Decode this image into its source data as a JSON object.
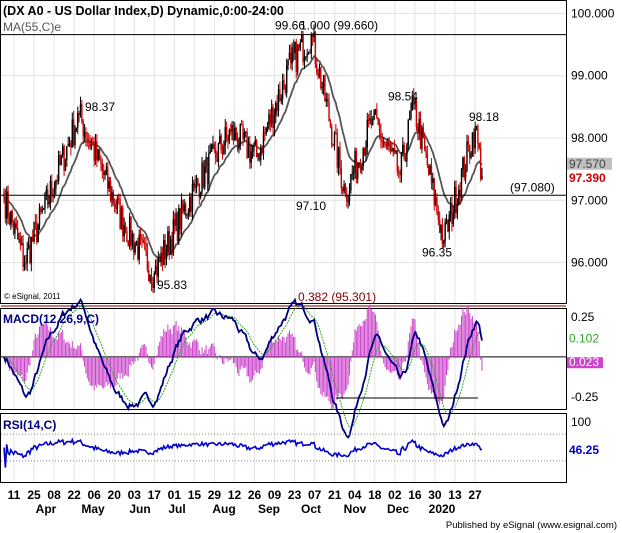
{
  "header": {
    "title": "(DX A0 - US Dollar Index,D) Dynamic,0:00-24:00",
    "ma_label": "MA(55,C)e"
  },
  "footer": {
    "copyright": "© eSignal, 2011",
    "published": "Published by eSignal (www.esignal.com)"
  },
  "colors": {
    "bull": "#000000",
    "bear": "#cc0000",
    "ma": "#555555",
    "macd": "#00007f",
    "signal": "#2ca82c",
    "histogram": "#cc44cc",
    "rsi": "#0000cc",
    "fib_line": "#800000",
    "last_price_bg": "#ffffff",
    "badge_gray": "#c0c0c0"
  },
  "chart_data": [
    {
      "type": "candlestick",
      "panel": "price",
      "ylim": [
        95.35,
        100.2
      ],
      "y_ticks": [
        96.0,
        97.0,
        98.0,
        99.0,
        100.0
      ],
      "y_tick_labels": [
        "96.000",
        "97.000",
        "98.000",
        "99.000",
        "100.000"
      ],
      "x_tick_labels": [
        "11",
        "25",
        "08",
        "22",
        "06",
        "20",
        "03",
        "17",
        "01",
        "15",
        "29",
        "12",
        "26",
        "09",
        "23",
        "07",
        "21",
        "04",
        "18",
        "02",
        "16",
        "30",
        "13",
        "27"
      ],
      "month_labels": [
        "Apr",
        "May",
        "Jun",
        "Jul",
        "Aug",
        "Sep",
        "Oct",
        "Nov",
        "Dec",
        "2020"
      ],
      "points": [
        {
          "index": 0,
          "y": 97.05
        },
        {
          "index": 15,
          "y": 96.0
        },
        {
          "index": 55,
          "y": 98.37
        },
        {
          "index": 88,
          "y": 96.6
        },
        {
          "index": 110,
          "y": 95.83
        },
        {
          "index": 140,
          "y": 97.2
        },
        {
          "index": 166,
          "y": 98.1
        },
        {
          "index": 185,
          "y": 97.7
        },
        {
          "index": 210,
          "y": 99.2
        },
        {
          "index": 225,
          "y": 99.66
        },
        {
          "index": 250,
          "y": 97.1
        },
        {
          "index": 270,
          "y": 98.3
        },
        {
          "index": 290,
          "y": 97.4
        },
        {
          "index": 300,
          "y": 98.54
        },
        {
          "index": 322,
          "y": 96.35
        },
        {
          "index": 345,
          "y": 98.18
        },
        {
          "index": 350,
          "y": 97.39
        }
      ],
      "ma": {
        "name": "MA(55,C)e",
        "last": 97.57
      },
      "last_price": 97.39,
      "annotations": [
        {
          "text": "99.66",
          "y": 99.66
        },
        {
          "text": "98.37",
          "y": 98.37
        },
        {
          "text": "98.54",
          "y": 98.54
        },
        {
          "text": "98.18",
          "y": 98.18
        },
        {
          "text": "97.10",
          "y": 97.1
        },
        {
          "text": "96.35",
          "y": 96.35
        },
        {
          "text": "95.83",
          "y": 95.83
        }
      ],
      "levels": [
        {
          "label": "1.000 (99.660)",
          "y": 99.66
        },
        {
          "label": "(97.080)",
          "y": 97.08
        },
        {
          "label": "0.382 (95.301)",
          "y": 95.301
        }
      ],
      "badges": [
        {
          "text": "97.570",
          "y": 97.57
        },
        {
          "text": "97.390",
          "y": 97.39
        }
      ]
    },
    {
      "type": "line",
      "panel": "macd",
      "title": "MACD(12,26,9,C)",
      "ylim": [
        -0.32,
        0.3
      ],
      "y_ticks": [
        0.25,
        -0.25
      ],
      "y_tick_labels": [
        "0.25",
        "-0.25"
      ],
      "series": [
        {
          "name": "MACD",
          "last": 0.102
        },
        {
          "name": "Signal"
        },
        {
          "name": "Histogram",
          "last": 0.023
        }
      ],
      "badges": [
        {
          "text": "0.102",
          "y": 0.102
        },
        {
          "text": "0.023",
          "y": 0.023
        }
      ]
    },
    {
      "type": "line",
      "panel": "rsi",
      "title": "RSI(14,C)",
      "ylim": [
        0,
        100
      ],
      "y_ticks": [
        100,
        70,
        30,
        0
      ],
      "y_tick_labels": [
        "100",
        "",
        "",
        ""
      ],
      "series": [
        {
          "name": "RSI",
          "last": 46.25
        }
      ],
      "badges": [
        {
          "text": "46.25",
          "y": 46.25
        }
      ]
    }
  ]
}
